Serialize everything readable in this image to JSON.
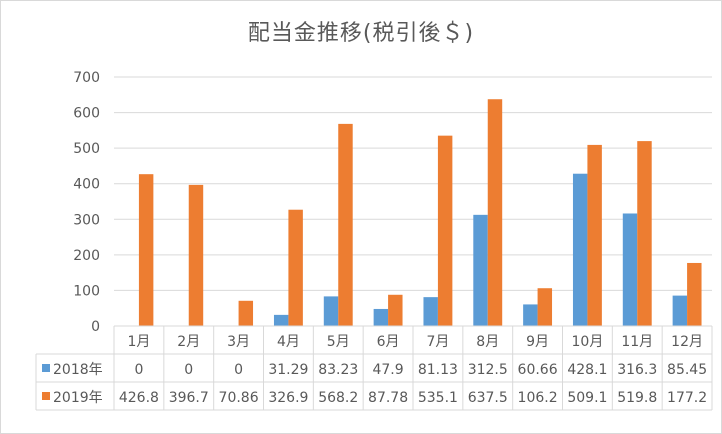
{
  "chart_data": {
    "type": "bar",
    "title": "配当金推移(税引後＄)",
    "categories": [
      "1月",
      "2月",
      "3月",
      "4月",
      "5月",
      "6月",
      "7月",
      "8月",
      "9月",
      "10月",
      "11月",
      "12月"
    ],
    "series": [
      {
        "name": "2018年",
        "color": "#5b9bd5",
        "values": [
          0,
          0,
          0,
          31.29,
          83.23,
          47.9,
          81.13,
          312.5,
          60.66,
          428.1,
          316.3,
          85.45
        ],
        "labels": [
          "0",
          "0",
          "0",
          "31.29",
          "83.23",
          "47.9",
          "81.13",
          "312.5",
          "60.66",
          "428.1",
          "316.3",
          "85.45"
        ]
      },
      {
        "name": "2019年",
        "color": "#ed7d31",
        "values": [
          426.8,
          396.7,
          70.86,
          326.9,
          568.2,
          87.78,
          535.1,
          637.5,
          106.2,
          509.1,
          519.8,
          177.2
        ],
        "labels": [
          "426.8",
          "396.7",
          "70.86",
          "326.9",
          "568.2",
          "87.78",
          "535.1",
          "637.5",
          "106.2",
          "509.1",
          "519.8",
          "177.2"
        ]
      }
    ],
    "ylim": [
      0,
      700
    ],
    "yticks": [
      0,
      100,
      200,
      300,
      400,
      500,
      600,
      700
    ],
    "ytick_labels": [
      "0",
      "100",
      "200",
      "300",
      "400",
      "500",
      "600",
      "700"
    ],
    "grid": true,
    "legend": "data-table"
  }
}
